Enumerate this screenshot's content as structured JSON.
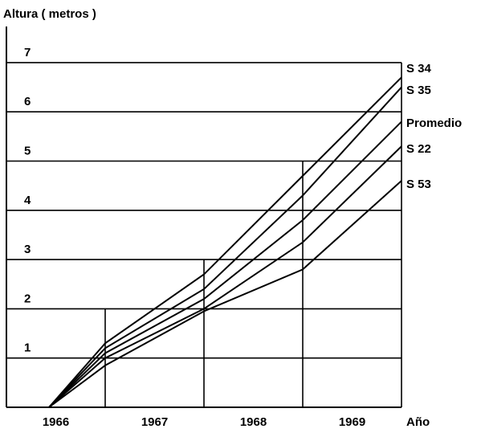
{
  "chart_data": {
    "type": "line",
    "ylabel": "Altura ( metros )",
    "xlabel": "Año",
    "x_ticks": [
      "1966",
      "1967",
      "1968",
      "1969"
    ],
    "y_ticks": [
      "1",
      "2",
      "3",
      "4",
      "5",
      "6",
      "7"
    ],
    "x": [
      0,
      1,
      2,
      3,
      4
    ],
    "ylim": [
      0,
      7.3
    ],
    "series": [
      {
        "name": "S 34",
        "values": [
          0,
          1.3,
          2.7,
          4.7,
          6.7
        ]
      },
      {
        "name": "S 35",
        "values": [
          0,
          1.2,
          2.4,
          4.3,
          6.5
        ]
      },
      {
        "name": "Promedio",
        "values": [
          0,
          1.1,
          2.2,
          3.8,
          5.8
        ]
      },
      {
        "name": "S 22",
        "values": [
          0,
          1.0,
          2.0,
          3.35,
          5.3
        ]
      },
      {
        "name": "S 53",
        "values": [
          0,
          0.85,
          1.95,
          2.8,
          4.6
        ]
      }
    ]
  }
}
